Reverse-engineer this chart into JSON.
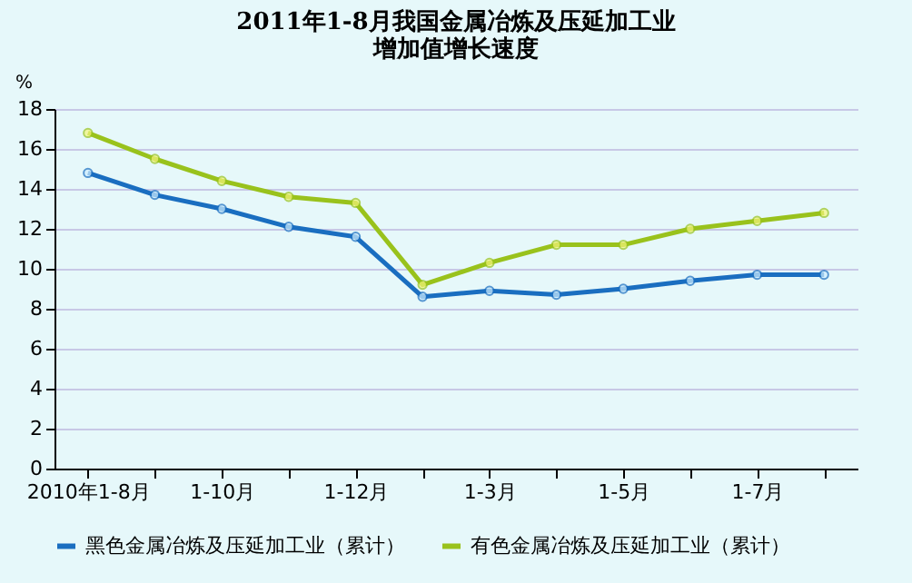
{
  "chart_data": {
    "type": "line",
    "title": "2011年1-8月我国金属冶炼及压延加工业",
    "subtitle": "增加值增长速度",
    "ylabel": "%",
    "categories": [
      "2010年1-8月",
      null,
      "1-10月",
      null,
      "1-12月",
      null,
      "1-3月",
      null,
      "1-5月",
      null,
      "1-7月",
      null
    ],
    "series": [
      {
        "name": "黑色金属冶炼及压延加工业（累计）",
        "color": "#1a6ec0",
        "values": [
          14.8,
          13.7,
          13.0,
          12.1,
          11.6,
          8.6,
          8.9,
          8.7,
          9.0,
          9.4,
          9.7,
          9.7
        ]
      },
      {
        "name": "有色金属冶炼及压延加工业（累计）",
        "color": "#99c21c",
        "values": [
          16.8,
          15.5,
          14.4,
          13.6,
          13.3,
          9.2,
          10.3,
          11.2,
          11.2,
          12.0,
          12.4,
          12.8
        ]
      }
    ],
    "ylim": [
      0,
      18
    ],
    "yticks": [
      0,
      2,
      4,
      6,
      8,
      10,
      12,
      14,
      16,
      18
    ],
    "grid": "y",
    "legend": "bottom",
    "marker": "circle",
    "line_style": "solid"
  }
}
